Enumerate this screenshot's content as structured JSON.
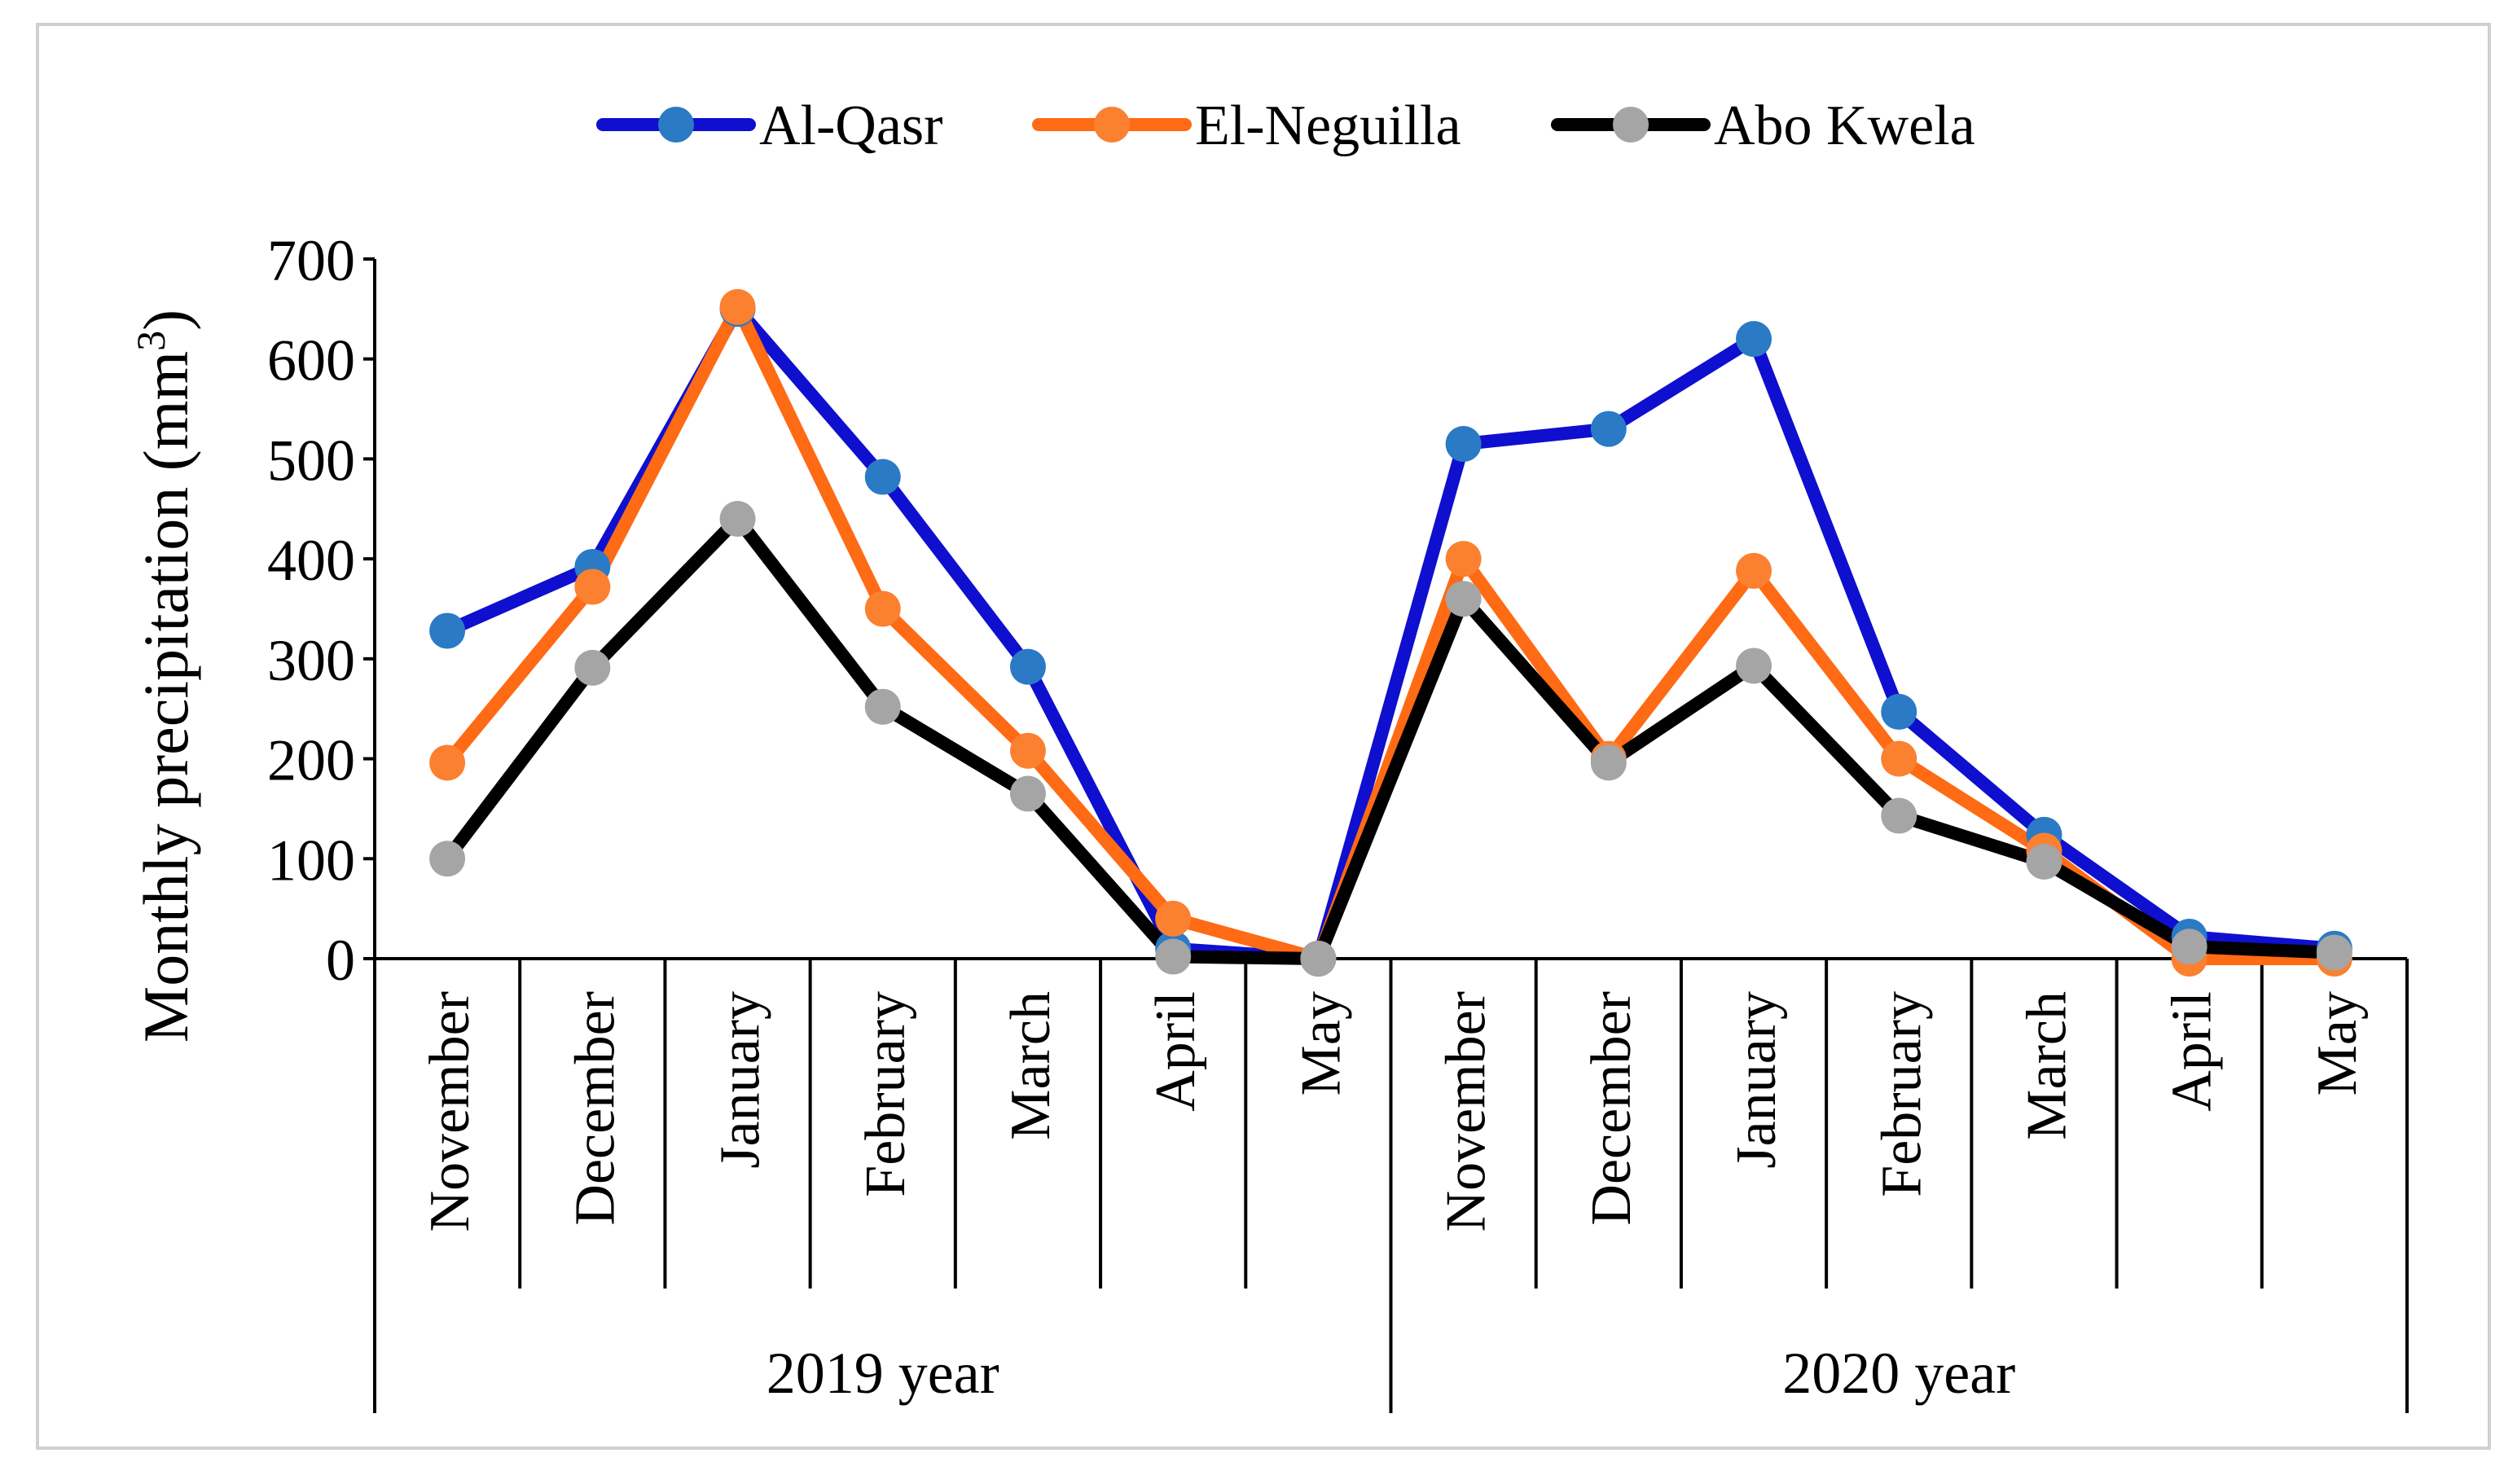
{
  "chart_data": {
    "type": "line",
    "title": "",
    "ylabel": "Monthly precipitation (mm",
    "ylabel_sup": "3",
    "ylabel_close": ")",
    "ylim": [
      0,
      700
    ],
    "yticks": [
      0,
      100,
      200,
      300,
      400,
      500,
      600,
      700
    ],
    "legend_position": "top",
    "grid": false,
    "categories": [
      "November",
      "December",
      "January",
      "February",
      "March",
      "April",
      "May",
      "November",
      "December",
      "January",
      "February",
      "March",
      "April",
      "May"
    ],
    "groups": [
      {
        "label": "2019 year",
        "start": 0,
        "end": 6
      },
      {
        "label": "2020 year",
        "start": 7,
        "end": 13
      }
    ],
    "series": [
      {
        "name": "Al-Qasr",
        "line_color": "#0f0fcf",
        "marker_color": "#2a7ac6",
        "values": [
          328,
          392,
          650,
          482,
          292,
          10,
          0,
          515,
          530,
          620,
          247,
          124,
          22,
          10
        ]
      },
      {
        "name": "El-Neguilla",
        "line_color": "#ff6a14",
        "marker_color": "#fb8030",
        "values": [
          196,
          372,
          652,
          350,
          208,
          40,
          0,
          400,
          200,
          388,
          200,
          108,
          0,
          0
        ]
      },
      {
        "name": "Abo Kwela",
        "line_color": "#000000",
        "marker_color": "#a5a5a5",
        "values": [
          100,
          291,
          440,
          252,
          165,
          2,
          0,
          360,
          196,
          293,
          143,
          97,
          12,
          6
        ]
      }
    ]
  }
}
